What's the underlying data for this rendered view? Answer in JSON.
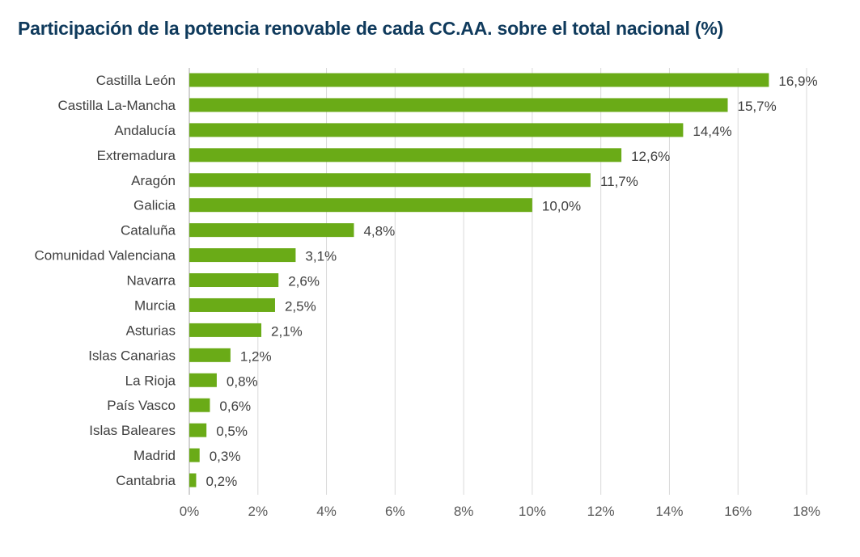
{
  "chart_data": {
    "type": "bar",
    "orientation": "horizontal",
    "title": "Participación de la potencia renovable de cada CC.AA. sobre el total nacional (%)",
    "xlabel": "",
    "ylabel": "",
    "categories": [
      "Castilla León",
      "Castilla La-Mancha",
      "Andalucía",
      "Extremadura",
      "Aragón",
      "Galicia",
      "Cataluña",
      "Comunidad Valenciana",
      "Navarra",
      "Murcia",
      "Asturias",
      "Islas Canarias",
      "La Rioja",
      "País Vasco",
      "Islas Baleares",
      "Madrid",
      "Cantabria"
    ],
    "values": [
      16.9,
      15.7,
      14.4,
      12.6,
      11.7,
      10.0,
      4.8,
      3.1,
      2.6,
      2.5,
      2.1,
      1.2,
      0.8,
      0.6,
      0.5,
      0.3,
      0.2
    ],
    "data_labels": [
      "16,9%",
      "15,7%",
      "14,4%",
      "12,6%",
      "11,7%",
      "10,0%",
      "4,8%",
      "3,1%",
      "2,6%",
      "2,5%",
      "2,1%",
      "1,2%",
      "0,8%",
      "0,6%",
      "0,5%",
      "0,3%",
      "0,2%"
    ],
    "xlim": [
      0,
      18
    ],
    "x_ticks": [
      0,
      2,
      4,
      6,
      8,
      10,
      12,
      14,
      16,
      18
    ],
    "x_tick_labels": [
      "0%",
      "2%",
      "4%",
      "6%",
      "8%",
      "10%",
      "12%",
      "14%",
      "16%",
      "18%"
    ],
    "grid": "vertical",
    "legend": "none",
    "bar_color": "#6aab17",
    "title_color": "#0f3a5c"
  }
}
